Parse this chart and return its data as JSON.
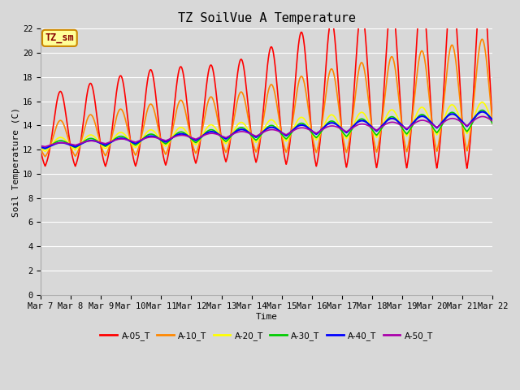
{
  "title": "TZ SoilVue A Temperature",
  "xlabel": "Time",
  "ylabel": "Soil Temperature (C)",
  "ylim": [
    0,
    22
  ],
  "series_names": [
    "A-05_T",
    "A-10_T",
    "A-20_T",
    "A-30_T",
    "A-40_T",
    "A-50_T"
  ],
  "series_colors": [
    "#ff0000",
    "#ff8800",
    "#ffff00",
    "#00cc00",
    "#0000ff",
    "#aa00aa"
  ],
  "series_linewidths": [
    1.2,
    1.2,
    1.2,
    1.2,
    1.5,
    1.2
  ],
  "annotation_text": "TZ_sm",
  "annotation_bg": "#ffff99",
  "annotation_border": "#cc8800",
  "bg_color": "#d8d8d8",
  "plot_bg_color": "#d8d8d8",
  "grid_color": "#ffffff",
  "title_fontsize": 11,
  "label_fontsize": 8,
  "tick_fontsize": 7.5,
  "x_tick_labels": [
    "Mar 7",
    "Mar 8",
    "Mar 9",
    "Mar 10",
    "Mar 11",
    "Mar 12",
    "Mar 13",
    "Mar 14",
    "Mar 15",
    "Mar 16",
    "Mar 17",
    "Mar 18",
    "Mar 19",
    "Mar 20",
    "Mar 21",
    "Mar 22"
  ]
}
